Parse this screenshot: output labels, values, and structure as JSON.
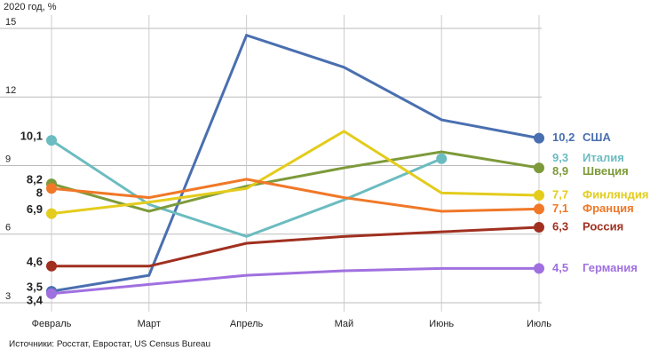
{
  "chart_data": {
    "type": "line",
    "y_label": "2020 год, %",
    "source": "Источники: Росстат, Евростат, US Census Bureau",
    "categories": [
      "Февраль",
      "Март",
      "Апрель",
      "Май",
      "Июнь",
      "Июль"
    ],
    "ylim": [
      3,
      15
    ],
    "yticks": [
      3,
      6,
      9,
      12,
      15
    ],
    "grid": true,
    "series": [
      {
        "name": "США",
        "color": "#4a6fb0",
        "values": [
          3.5,
          4.2,
          14.7,
          13.3,
          11.0,
          10.2
        ],
        "value_labels": [
          "3,5",
          null,
          null,
          null,
          null,
          "10,2"
        ]
      },
      {
        "name": "Италия",
        "color": "#6bbcc0",
        "values": [
          10.1,
          7.3,
          5.9,
          7.5,
          9.3,
          null
        ],
        "value_labels": [
          "10,1",
          null,
          null,
          null,
          "9,3",
          null
        ]
      },
      {
        "name": "Швеция",
        "color": "#7d9a3a",
        "values": [
          8.2,
          7.0,
          8.1,
          8.9,
          9.6,
          8.9
        ],
        "value_labels": [
          "8,2",
          null,
          null,
          null,
          null,
          "8,9"
        ]
      },
      {
        "name": "Финляндия",
        "color": "#e3cc1c",
        "values": [
          6.9,
          7.4,
          8.0,
          10.5,
          7.8,
          7.7
        ],
        "value_labels": [
          "6,9",
          null,
          null,
          null,
          null,
          "7,7"
        ]
      },
      {
        "name": "Франция",
        "color": "#f07828",
        "values": [
          8.0,
          7.6,
          8.4,
          7.6,
          7.0,
          7.1
        ],
        "value_labels": [
          "8",
          null,
          null,
          null,
          null,
          "7,1"
        ]
      },
      {
        "name": "Россия",
        "color": "#a03020",
        "values": [
          4.6,
          4.6,
          5.6,
          5.9,
          6.1,
          6.3
        ],
        "value_labels": [
          "4,6",
          null,
          null,
          null,
          null,
          "6,3"
        ]
      },
      {
        "name": "Германия",
        "color": "#a070e0",
        "values": [
          3.4,
          3.8,
          4.2,
          4.4,
          4.5,
          4.5
        ],
        "value_labels": [
          "3,4",
          null,
          null,
          null,
          null,
          "4,5"
        ]
      }
    ]
  }
}
